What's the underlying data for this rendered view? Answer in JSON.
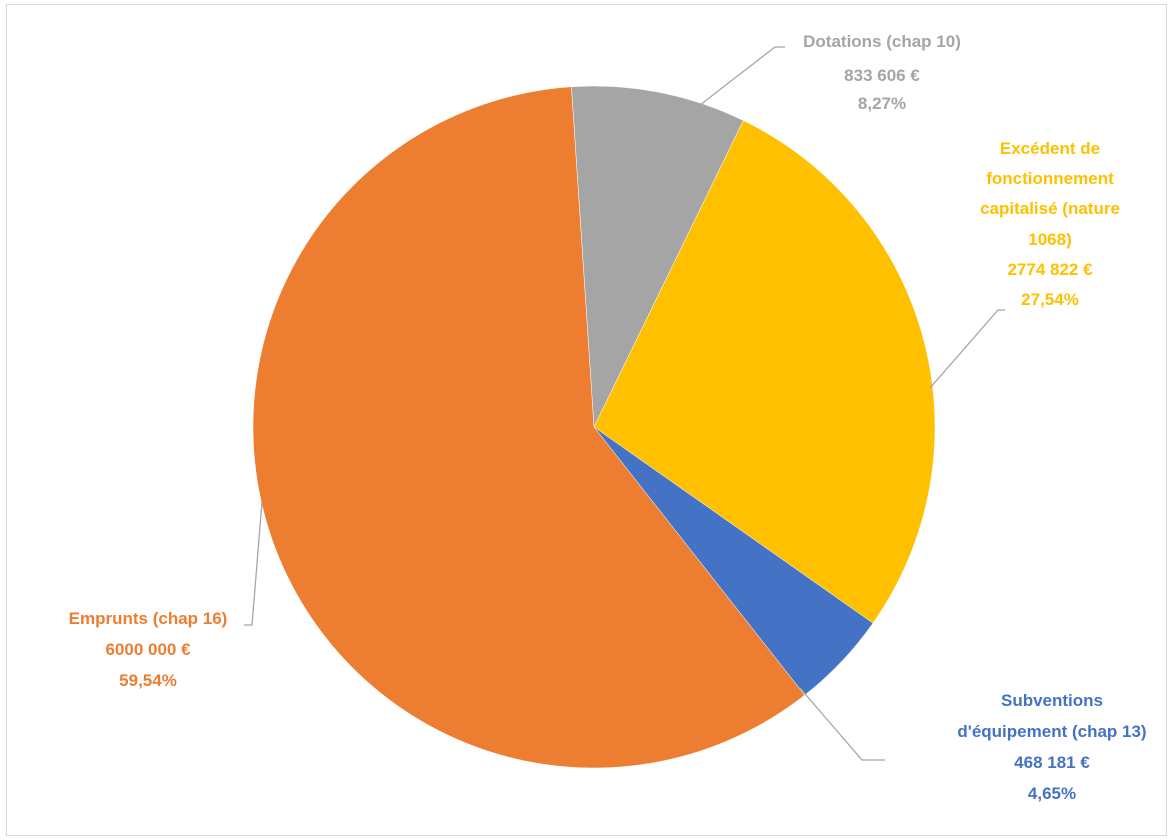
{
  "chart_data": {
    "type": "pie",
    "title": "",
    "slices": [
      {
        "label": "Dotations (chap 10)",
        "value": 833606,
        "value_text": "833 606 €",
        "percent_text": "8,27%",
        "color": "#a5a5a5"
      },
      {
        "label": "Excédent de fonctionnement capitalisé (nature 1068)",
        "value": 2774822,
        "value_text": "2774 822 €",
        "percent_text": "27,54%",
        "color": "#ffc000"
      },
      {
        "label": "Subventions d'équipement (chap 13)",
        "value": 468181,
        "value_text": "468 181 €",
        "percent_text": "4,65%",
        "color": "#4472c4"
      },
      {
        "label": "Emprunts (chap 16)",
        "value": 6000000,
        "value_text": "6000 000 €",
        "percent_text": "59,54%",
        "color": "#ed7d31"
      }
    ],
    "legend": "none",
    "data_labels": "outside with leader lines"
  },
  "colors": {
    "leader_line": "#a5a5a5",
    "border": "#d9d9d9"
  }
}
